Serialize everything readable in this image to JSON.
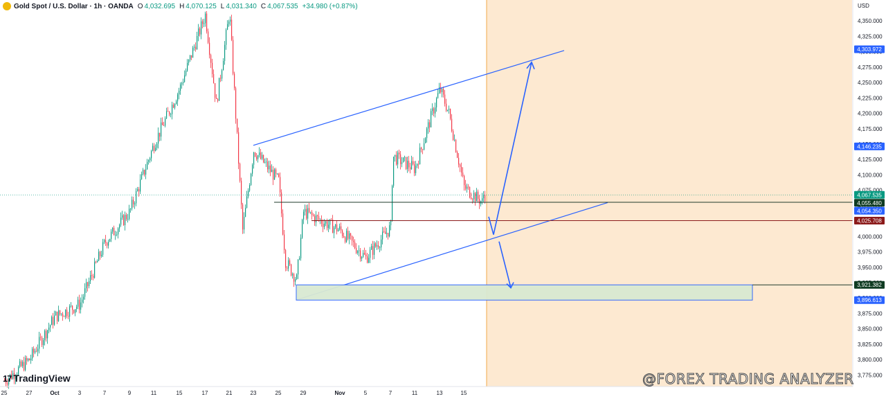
{
  "header": {
    "symbol": "Gold Spot / U.S. Dollar · 1h · OANDA",
    "open_label": "O",
    "open": "4,032.695",
    "high_label": "H",
    "high": "4,070.125",
    "low_label": "L",
    "low": "4,031.340",
    "close_label": "C",
    "close": "4,067.535",
    "change": "+34.980 (+0.87%)"
  },
  "currency": "USD",
  "logo": "TradingView",
  "watermark": "@FOREX TRADING ANALYZER",
  "colors": {
    "up": "#089981",
    "down": "#f23645",
    "drawing": "#2962ff",
    "forecast_zone": "#fde7cc",
    "support_box": "#d9e9d2",
    "resistance_level": "#8b1a1a"
  },
  "chart_data": {
    "type": "candlestick",
    "instrument": "XAUUSD",
    "timeframe": "1h",
    "ylim": [
      3763,
      4375
    ],
    "y_ticks": [
      "4,350.000",
      "4,325.000",
      "4,300.000",
      "4,275.000",
      "4,250.000",
      "4,225.000",
      "4,200.000",
      "4,175.000",
      "4,150.000",
      "4,125.000",
      "4,100.000",
      "4,075.000",
      "4,050.000",
      "4,025.000",
      "4,000.000",
      "3,975.000",
      "3,950.000",
      "3,925.000",
      "3,900.000",
      "3,875.000",
      "3,850.000",
      "3,825.000",
      "3,800.000",
      "3,775.000"
    ],
    "x_ticks": [
      "25",
      "27",
      "Oct",
      "3",
      "7",
      "9",
      "11",
      "15",
      "17",
      "21",
      "23",
      "25",
      "29",
      "Nov",
      "5",
      "7",
      "11",
      "13",
      "15"
    ],
    "price_path": [
      [
        "25",
        3765
      ],
      [
        "27",
        3800
      ],
      [
        "Oct",
        3870
      ],
      [
        "3",
        3890
      ],
      [
        "7",
        3990
      ],
      [
        "9",
        4040
      ],
      [
        "11",
        4150
      ],
      [
        "15",
        4240
      ],
      [
        "17",
        4360
      ],
      [
        "19",
        4215
      ],
      [
        "21",
        4365
      ],
      [
        "22",
        4010
      ],
      [
        "23",
        4140
      ],
      [
        "25",
        4090
      ],
      [
        "27",
        3960
      ],
      [
        "28",
        3930
      ],
      [
        "29",
        4040
      ],
      [
        "Nov",
        4010
      ],
      [
        "5",
        3965
      ],
      [
        "7",
        4015
      ],
      [
        "9",
        4130
      ],
      [
        "11",
        4110
      ],
      [
        "13",
        4240
      ],
      [
        "14",
        4200
      ],
      [
        "15",
        4080
      ],
      [
        "16",
        4055
      ],
      [
        "16",
        4025
      ],
      [
        "16",
        4067.535
      ]
    ],
    "price_labels": [
      {
        "text": "4,303.972",
        "kind": "drawing"
      },
      {
        "text": "4,146.235",
        "kind": "drawing"
      },
      {
        "text": "4,067.535",
        "kind": "last"
      },
      {
        "text": "4,055.480",
        "kind": "level"
      },
      {
        "text": "4,054.350",
        "kind": "drawing"
      },
      {
        "text": "4,025.708",
        "kind": "level-red"
      },
      {
        "text": "3,921.382",
        "kind": "level"
      },
      {
        "text": "3,896.613",
        "kind": "drawing"
      }
    ],
    "drawings": [
      {
        "name": "channel-upper",
        "from": [
          "23",
          4148
        ],
        "to": [
          "17*",
          4302
        ]
      },
      {
        "name": "channel-lower",
        "from": [
          "28",
          3897
        ],
        "to": [
          "17*",
          4054
        ]
      },
      {
        "name": "level-4055",
        "price": 4055.48
      },
      {
        "name": "level-4025",
        "price": 4025.708
      },
      {
        "name": "demand-zone",
        "top": 3921.382,
        "bottom": 3896.613
      },
      {
        "name": "bull-scenario-arrow",
        "points": [
          [
            "16",
            4032
          ],
          [
            "16*",
            4003
          ],
          [
            "17",
            4283
          ]
        ]
      },
      {
        "name": "bear-scenario-arrow",
        "points": [
          [
            "16*",
            4003
          ],
          [
            "16*",
            3930
          ]
        ]
      }
    ],
    "forecast_zone_start": "16"
  }
}
